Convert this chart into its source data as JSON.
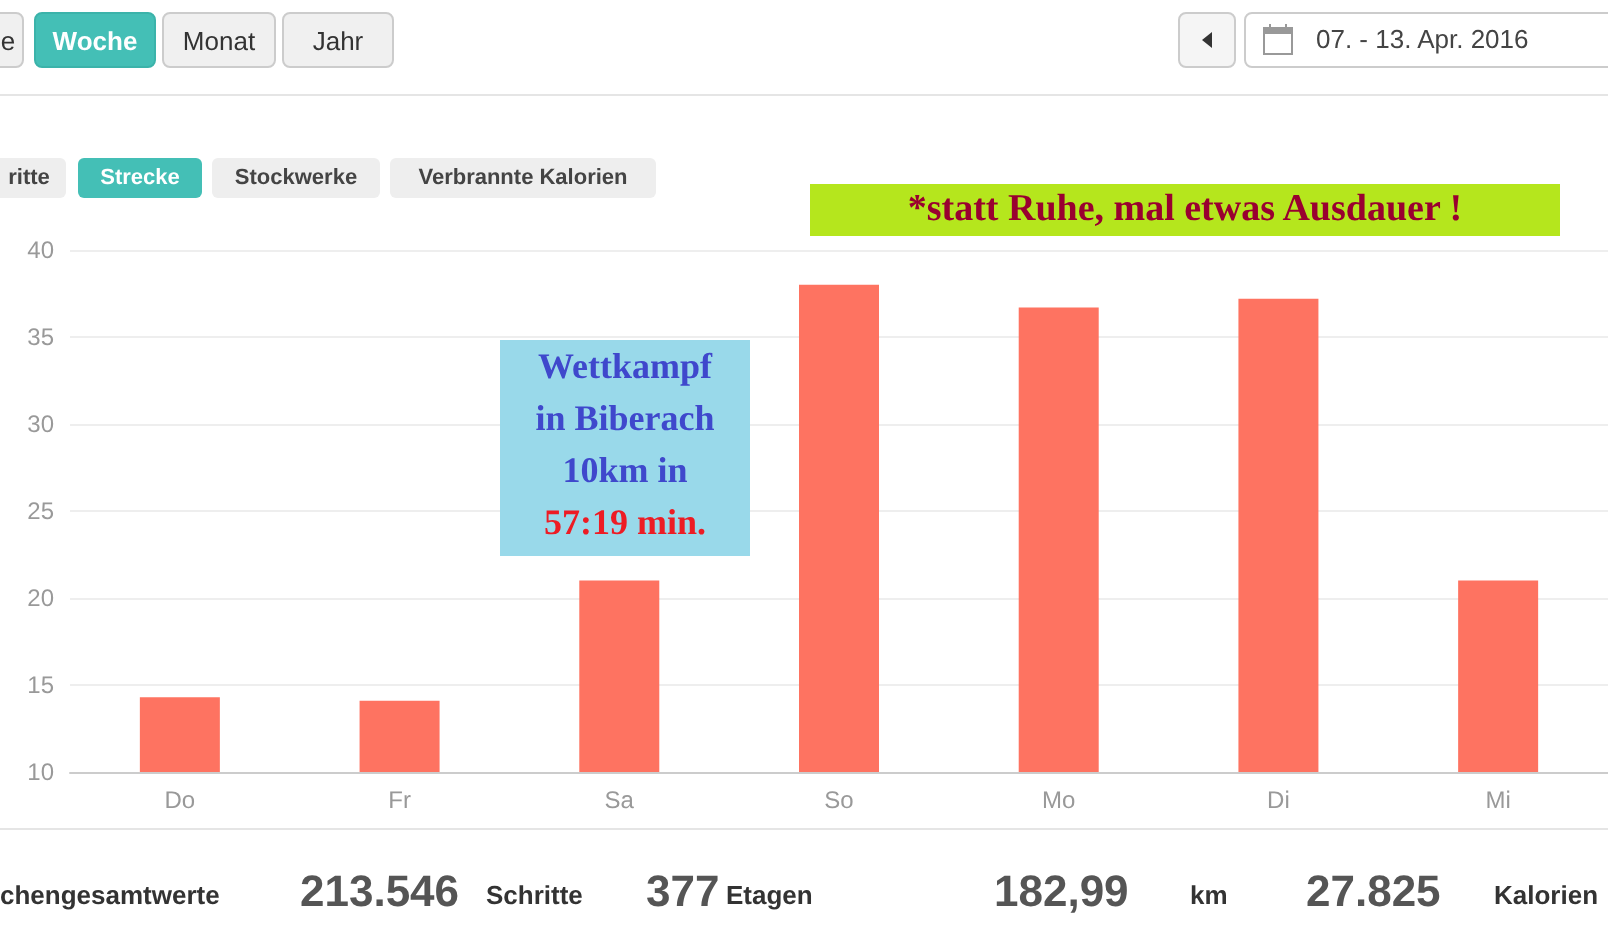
{
  "chart_data": {
    "type": "bar",
    "categories": [
      "Do",
      "Fr",
      "Sa",
      "So",
      "Mo",
      "Di",
      "Mi"
    ],
    "values": [
      14.3,
      14.1,
      21,
      38,
      36.7,
      37.2,
      21
    ],
    "color": "#fe7361",
    "ylim": [
      10,
      40
    ],
    "yticks": [
      10,
      15,
      20,
      25,
      30,
      35,
      40
    ],
    "grid": "y",
    "annotations": [
      "e",
      "Woche",
      "Monat",
      "Jahr",
      "07. - 13. Apr. 2016",
      "ritte",
      "Strecke",
      "Stockwerke",
      "Verbrannte Kalorien",
      "*statt Ruhe, mal etwas Ausdauer !",
      "Wettkampf\nin Biberach\n10km in\n57:19 min.",
      "chengesamtwerte",
      "213.546",
      "Schritte",
      "377",
      "Etagen",
      "182,99",
      "km",
      "27.825",
      "Kalorien"
    ]
  }
}
